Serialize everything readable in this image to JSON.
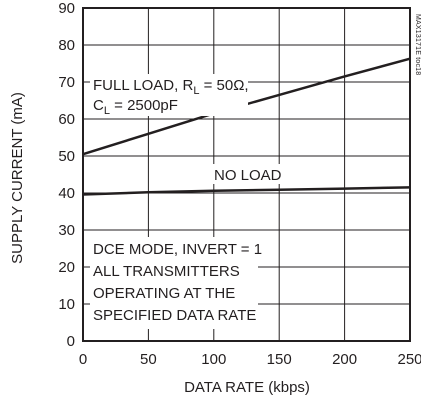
{
  "chart_data": {
    "type": "line",
    "xlabel": "DATA RATE (kbps)",
    "ylabel": "SUPPLY CURRENT (mA)",
    "xlim": [
      0,
      250
    ],
    "ylim": [
      0,
      90
    ],
    "x_ticks": [
      0,
      50,
      100,
      150,
      200,
      250
    ],
    "y_ticks": [
      0,
      10,
      20,
      30,
      40,
      50,
      60,
      70,
      80,
      90
    ],
    "x_tick_labels": [
      "0",
      "50",
      "100",
      "150",
      "200",
      "250"
    ],
    "y_tick_labels": [
      "0",
      "10",
      "20",
      "30",
      "40",
      "50",
      "60",
      "70",
      "80",
      "90"
    ],
    "grid": true,
    "series": [
      {
        "name": "FULL LOAD, RL = 50Ω, CL = 2500pF",
        "x": [
          0,
          50,
          100,
          150,
          200,
          250
        ],
        "y": [
          50.5,
          56,
          61.5,
          66.5,
          71.5,
          76.3
        ]
      },
      {
        "name": "NO LOAD",
        "x": [
          0,
          50,
          100,
          150,
          200,
          250
        ],
        "y": [
          39.6,
          40.2,
          40.6,
          40.9,
          41.2,
          41.5
        ]
      }
    ],
    "annotations": {
      "full_load_line1_prefix": "FULL LOAD, R",
      "full_load_line1_sub": "L",
      "full_load_line1_suffix": " = 50Ω,",
      "full_load_line2_prefix": "C",
      "full_load_line2_sub": "L",
      "full_load_line2_suffix": " = 2500pF",
      "no_load": "NO LOAD",
      "condition_lines": [
        "DCE MODE, INVERT = 1",
        "ALL TRANSMITTERS",
        "OPERATING AT THE",
        "SPECIFIED DATA RATE"
      ],
      "figure_id": "MAX13171E toc18"
    }
  }
}
